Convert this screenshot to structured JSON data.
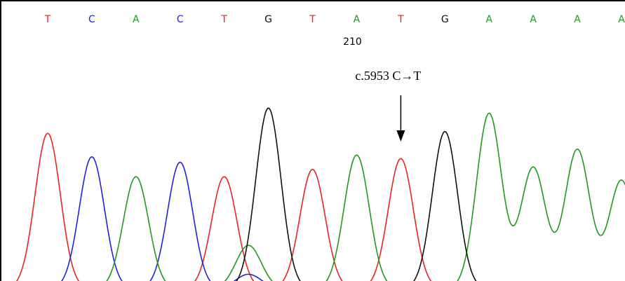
{
  "chart_data": {
    "type": "line",
    "title": "",
    "xlabel": "",
    "ylabel": "",
    "colors": {
      "A": "#1f9a1f",
      "C": "#2222dd",
      "G": "#111111",
      "T": "#ee2222"
    },
    "base_calls": [
      {
        "base": "T",
        "peak_height": 0.86
      },
      {
        "base": "C",
        "peak_height": 0.73
      },
      {
        "base": "A",
        "peak_height": 0.62
      },
      {
        "base": "C",
        "peak_height": 0.7
      },
      {
        "base": "T",
        "peak_height": 0.62
      },
      {
        "base": "G",
        "peak_height": 1.0
      },
      {
        "base": "T",
        "peak_height": 0.66
      },
      {
        "base": "A",
        "peak_height": 0.74
      },
      {
        "base": "T",
        "peak_height": 0.72
      },
      {
        "base": "G",
        "peak_height": 0.87
      },
      {
        "base": "A",
        "peak_height": 0.97
      },
      {
        "base": "A",
        "peak_height": 0.67
      },
      {
        "base": "A",
        "peak_height": 0.77
      },
      {
        "base": "A",
        "peak_height": 0.6
      }
    ],
    "secondary_peaks": [
      {
        "base": "A",
        "after_call": 5,
        "peak_height": 0.24
      },
      {
        "base": "C",
        "after_call": 5,
        "peak_height": 0.08
      }
    ],
    "position_marker": {
      "label": "210",
      "call_index": 7
    },
    "annotation": {
      "text": "c.5953 C→T",
      "call_index": 8
    }
  }
}
